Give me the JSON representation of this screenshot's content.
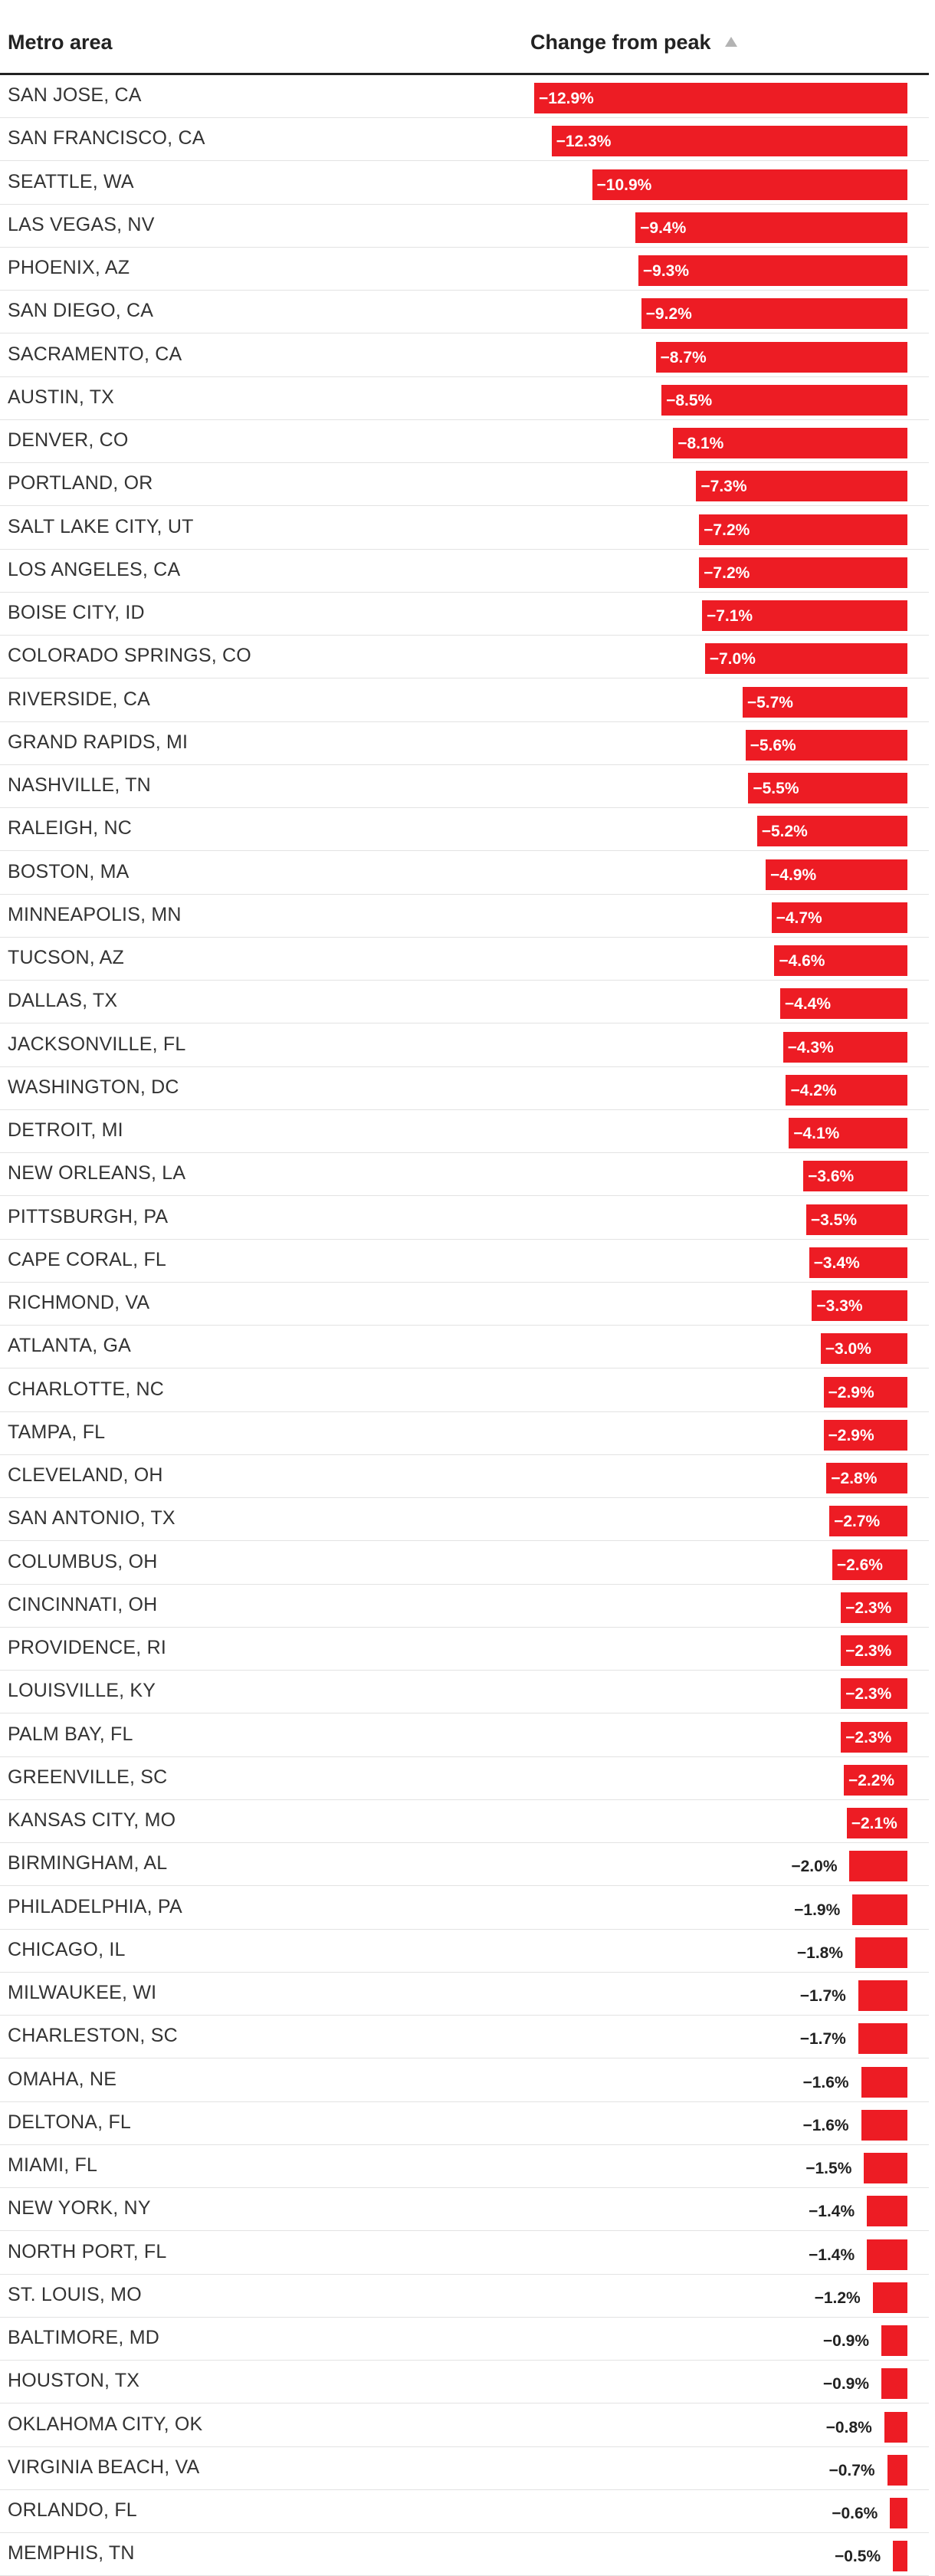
{
  "header": {
    "metro_label": "Metro area",
    "change_label": "Change from peak"
  },
  "colors": {
    "bar": "#ed1c24",
    "text": "#222222",
    "rule": "#e3e3e3"
  },
  "icons": {
    "sort": "sort-ascending-triangle-icon"
  },
  "chart_data": {
    "type": "bar",
    "orientation": "horizontal",
    "unit": "%",
    "xlim": [
      -12.9,
      0
    ],
    "categories": [
      "SAN JOSE, CA",
      "SAN FRANCISCO, CA",
      "SEATTLE, WA",
      "LAS VEGAS, NV",
      "PHOENIX, AZ",
      "SAN DIEGO, CA",
      "SACRAMENTO, CA",
      "AUSTIN, TX",
      "DENVER, CO",
      "PORTLAND, OR",
      "SALT LAKE CITY, UT",
      "LOS ANGELES, CA",
      "BOISE CITY, ID",
      "COLORADO SPRINGS, CO",
      "RIVERSIDE, CA",
      "GRAND RAPIDS, MI",
      "NASHVILLE, TN",
      "RALEIGH, NC",
      "BOSTON, MA",
      "MINNEAPOLIS, MN",
      "TUCSON, AZ",
      "DALLAS, TX",
      "JACKSONVILLE, FL",
      "WASHINGTON, DC",
      "DETROIT, MI",
      "NEW ORLEANS, LA",
      "PITTSBURGH, PA",
      "CAPE CORAL, FL",
      "RICHMOND, VA",
      "ATLANTA, GA",
      "CHARLOTTE, NC",
      "TAMPA, FL",
      "CLEVELAND, OH",
      "SAN ANTONIO, TX",
      "COLUMBUS, OH",
      "CINCINNATI, OH",
      "PROVIDENCE, RI",
      "LOUISVILLE, KY",
      "PALM BAY, FL",
      "GREENVILLE, SC",
      "KANSAS CITY, MO",
      "BIRMINGHAM, AL",
      "PHILADELPHIA, PA",
      "CHICAGO, IL",
      "MILWAUKEE, WI",
      "CHARLESTON, SC",
      "OMAHA, NE",
      "DELTONA, FL",
      "MIAMI, FL",
      "NEW YORK, NY",
      "NORTH PORT, FL",
      "ST. LOUIS, MO",
      "BALTIMORE, MD",
      "HOUSTON, TX",
      "OKLAHOMA CITY, OK",
      "VIRGINIA BEACH, VA",
      "ORLANDO, FL",
      "MEMPHIS, TN"
    ],
    "values": [
      -12.9,
      -12.3,
      -10.9,
      -9.4,
      -9.3,
      -9.2,
      -8.7,
      -8.5,
      -8.1,
      -7.3,
      -7.2,
      -7.2,
      -7.1,
      -7.0,
      -5.7,
      -5.6,
      -5.5,
      -5.2,
      -4.9,
      -4.7,
      -4.6,
      -4.4,
      -4.3,
      -4.2,
      -4.1,
      -3.6,
      -3.5,
      -3.4,
      -3.3,
      -3.0,
      -2.9,
      -2.9,
      -2.8,
      -2.7,
      -2.6,
      -2.3,
      -2.3,
      -2.3,
      -2.3,
      -2.2,
      -2.1,
      -2.0,
      -1.9,
      -1.8,
      -1.7,
      -1.7,
      -1.6,
      -1.6,
      -1.5,
      -1.4,
      -1.4,
      -1.2,
      -0.9,
      -0.9,
      -0.8,
      -0.7,
      -0.6,
      -0.5
    ],
    "labels": [
      "−12.9%",
      "−12.3%",
      "−10.9%",
      "−9.4%",
      "−9.3%",
      "−9.2%",
      "−8.7%",
      "−8.5%",
      "−8.1%",
      "−7.3%",
      "−7.2%",
      "−7.2%",
      "−7.1%",
      "−7.0%",
      "−5.7%",
      "−5.6%",
      "−5.5%",
      "−5.2%",
      "−4.9%",
      "−4.7%",
      "−4.6%",
      "−4.4%",
      "−4.3%",
      "−4.2%",
      "−4.1%",
      "−3.6%",
      "−3.5%",
      "−3.4%",
      "−3.3%",
      "−3.0%",
      "−2.9%",
      "−2.9%",
      "−2.8%",
      "−2.7%",
      "−2.6%",
      "−2.3%",
      "−2.3%",
      "−2.3%",
      "−2.3%",
      "−2.2%",
      "−2.1%",
      "−2.0%",
      "−1.9%",
      "−1.8%",
      "−1.7%",
      "−1.7%",
      "−1.6%",
      "−1.6%",
      "−1.5%",
      "−1.4%",
      "−1.4%",
      "−1.2%",
      "−0.9%",
      "−0.9%",
      "−0.8%",
      "−0.7%",
      "−0.6%",
      "−0.5%"
    ],
    "label_position_threshold": -2.1
  }
}
